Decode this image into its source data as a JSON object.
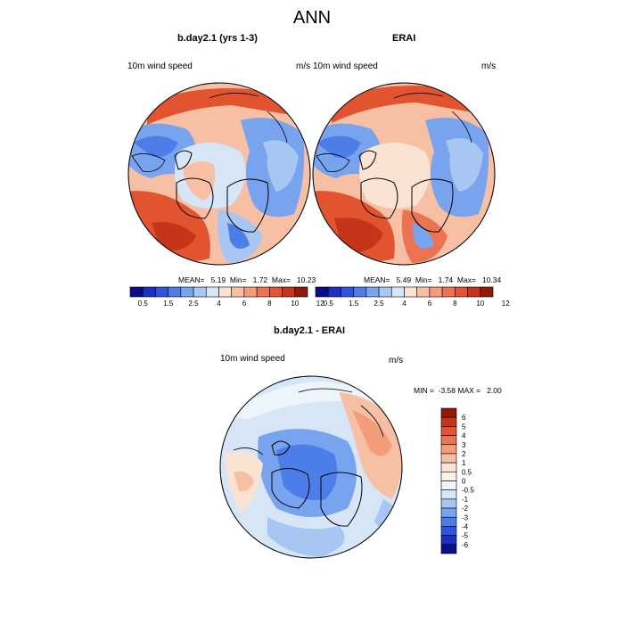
{
  "page": {
    "title": "ANN"
  },
  "panels": [
    {
      "title": "b.day2.1 (yrs 1-3)",
      "left_label": "10m wind speed",
      "right_label": "m/s",
      "stats_text": "MEAN=   5.19  Min=   1.72  Max=   10.23"
    },
    {
      "title": "ERAI",
      "left_label": "10m wind speed",
      "right_label": "m/s",
      "stats_text": "MEAN=   5.49  Min=   1.74  Max=   10.34"
    }
  ],
  "colorbar_top": {
    "labels": [
      "0.5",
      "1.5",
      "2.5",
      "4",
      "6",
      "8",
      "10",
      "12"
    ],
    "colors": [
      "#0a0f87",
      "#1d2ec4",
      "#2e55e0",
      "#4d7ee8",
      "#78a3ee",
      "#a7c6f2",
      "#d6e6f7",
      "#fbe3d3",
      "#f7c0a5",
      "#f29c7a",
      "#ec7352",
      "#e2532f",
      "#c63519",
      "#8f1a0a"
    ]
  },
  "diff_panel": {
    "title": "b.day2.1 - ERAI",
    "left_label": "10m wind speed",
    "right_label": "m/s",
    "stats_text": "MIN =  -3.58 MAX =   2.00"
  },
  "colorbar_diff": {
    "labels": [
      "6",
      "5",
      "4",
      "3",
      "2",
      "1",
      "0.5",
      "0",
      "-0.5",
      "-1",
      "-2",
      "-3",
      "-4",
      "-5",
      "-6"
    ],
    "colors": [
      "#8f1a0a",
      "#c63519",
      "#e2532f",
      "#ec7352",
      "#f29c7a",
      "#f7c0a5",
      "#fbe3d3",
      "#fdf1ea",
      "#eef4fb",
      "#d6e6f7",
      "#a7c6f2",
      "#78a3ee",
      "#4d7ee8",
      "#2e55e0",
      "#1d2ec4",
      "#0a0f87"
    ]
  }
}
